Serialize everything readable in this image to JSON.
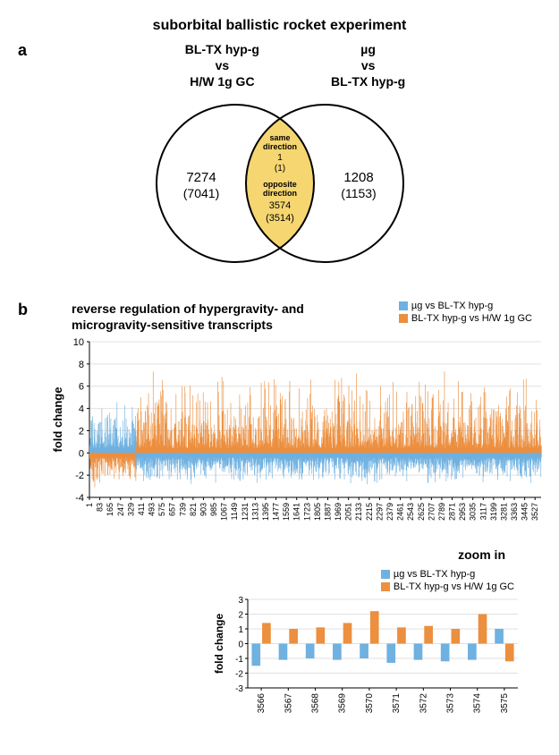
{
  "title": "suborbital ballistic rocket experiment",
  "panels": {
    "a": "a",
    "b": "b"
  },
  "venn": {
    "left_header_l1": "BL-TX hyp-g",
    "left_header_l2": "vs",
    "left_header_l3": "H/W 1g GC",
    "right_header_l1": "µg",
    "right_header_l2": "vs",
    "right_header_l3": "BL-TX hyp-g",
    "left_count": "7274",
    "left_sub": "(7041)",
    "right_count": "1208",
    "right_sub": "(1153)",
    "center_same_l1": "same",
    "center_same_l2": "direction",
    "center_same_n1": "1",
    "center_same_n2": "(1)",
    "center_opp_l1": "opposite",
    "center_opp_l2": "direction",
    "center_opp_n1": "3574",
    "center_opp_n2": "(3514)",
    "circle_stroke": "#000000",
    "overlap_fill": "#f6d671"
  },
  "legend": {
    "series1_label": "µg vs BL-TX hyp-g",
    "series1_color": "#6fb1e0",
    "series2_label": "BL-TX hyp-g vs H/W 1g GC",
    "series2_color": "#ec8f3f"
  },
  "main_chart": {
    "title_l1": "reverse regulation of hypergravity- and",
    "title_l2": "microgravity-sensitive transcripts",
    "ylabel": "fold change",
    "ylim": [
      -4,
      10
    ],
    "yticks": [
      -4,
      -2,
      0,
      2,
      4,
      6,
      8,
      10
    ],
    "xticks": [
      1,
      83,
      165,
      247,
      329,
      411,
      493,
      575,
      657,
      739,
      821,
      903,
      985,
      1067,
      1149,
      1231,
      1313,
      1395,
      1477,
      1559,
      1641,
      1723,
      1805,
      1887,
      1969,
      2051,
      2133,
      2215,
      2297,
      2379,
      2461,
      2543,
      2625,
      2707,
      2789,
      2871,
      2953,
      3035,
      3117,
      3199,
      3281,
      3363,
      3445,
      3527
    ],
    "xtotal": 3575,
    "switch_at": 370,
    "blue_up_max": 5,
    "orange_down_max": -3.5,
    "orange_up_max": 8,
    "blue_down_max": -3,
    "grid_color": "#e0e0e0"
  },
  "zoom": {
    "title": "zoom in",
    "ylabel": "fold change",
    "ylim": [
      -3,
      3
    ],
    "yticks": [
      -3,
      -2,
      -1,
      0,
      1,
      2,
      3
    ],
    "categories": [
      "3566",
      "3567",
      "3568",
      "3569",
      "3570",
      "3571",
      "3572",
      "3573",
      "3574",
      "3575"
    ],
    "orange_values": [
      1.4,
      1.0,
      1.1,
      1.4,
      2.2,
      1.1,
      1.2,
      1.0,
      2.0,
      -1.2
    ],
    "blue_values": [
      -1.5,
      -1.1,
      -1.0,
      -1.1,
      -1.0,
      -1.3,
      -1.1,
      -1.2,
      -1.1,
      1.0
    ]
  }
}
